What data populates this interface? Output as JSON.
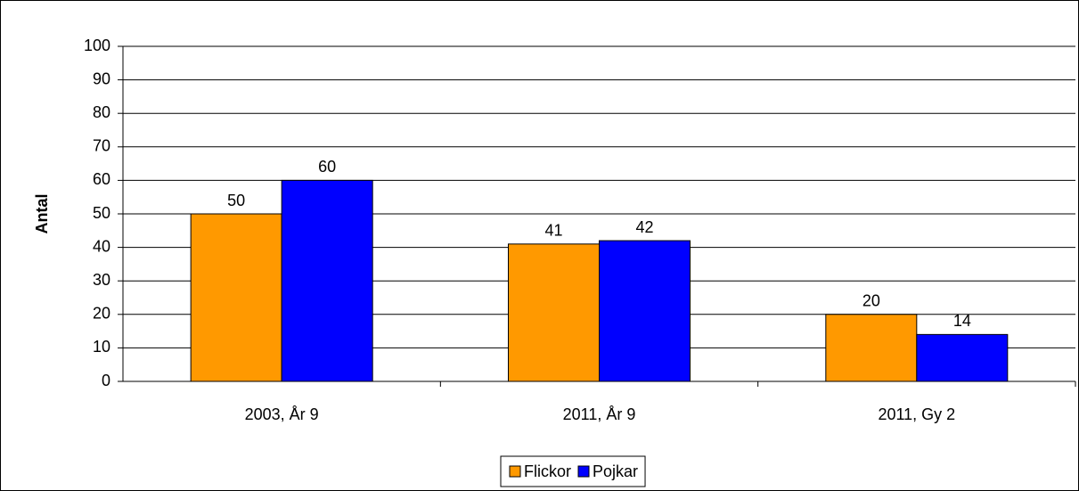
{
  "chart_data": {
    "type": "bar",
    "categories": [
      "2003, År 9",
      "2011, År 9",
      "2011, Gy 2"
    ],
    "series": [
      {
        "name": "Flickor",
        "color": "#ff9900",
        "values": [
          50,
          41,
          20
        ]
      },
      {
        "name": "Pojkar",
        "color": "#0000ff",
        "values": [
          60,
          42,
          14
        ]
      }
    ],
    "ylabel": "Antal",
    "ylim": [
      0,
      100
    ],
    "yticks": [
      0,
      10,
      20,
      30,
      40,
      50,
      60,
      70,
      80,
      90,
      100
    ],
    "grid": true,
    "legend": "bottom"
  }
}
